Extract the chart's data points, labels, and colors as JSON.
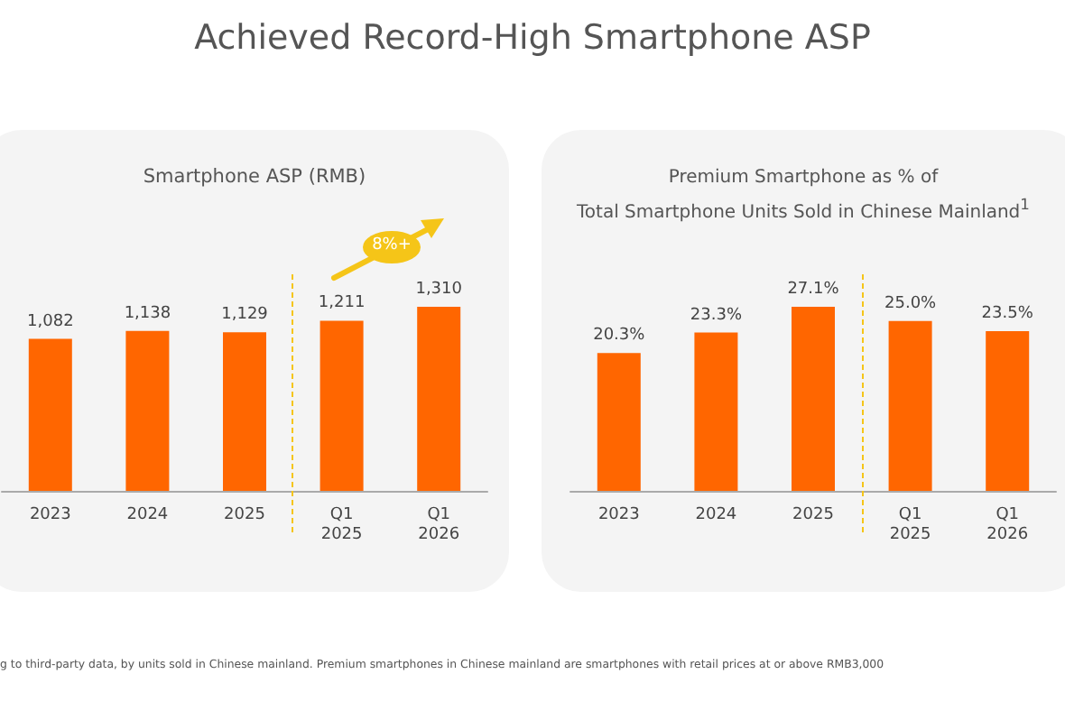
{
  "chart_data": [
    {
      "type": "bar",
      "title": "Achieved Record-High Smartphone ASP",
      "subtitle": "Smartphone ASP (RMB)",
      "categories": [
        "2023",
        "2024",
        "2025",
        "Q1 2025",
        "Q1 2026"
      ],
      "values": [
        1082,
        1138,
        1129,
        1211,
        1310
      ],
      "value_labels": [
        "1,082",
        "1,138",
        "1,129",
        "1,211",
        "1,310"
      ],
      "color": "#ff6600",
      "annotations": [
        "8%+"
      ]
    },
    {
      "type": "bar",
      "title": "Premium Smartphone as % of\nTotal Smartphone Units Sold in Chinese Mainland$^{1}$",
      "categories": [
        "2023",
        "2024",
        "2025",
        "Q1 2025",
        "Q1 2026"
      ],
      "values": [
        20.3,
        23.3,
        27.1,
        25.0,
        23.5
      ],
      "value_labels": [
        "20.3%",
        "23.3%",
        "27.1%",
        "25.0%",
        "23.5%"
      ],
      "color": "#ff6600",
      "annotations": [
        "g to third-party data, by units sold in Chinese mainland. Premium smartphones in Chinese mainland are smartphones with retail prices at or above RMB3,000"
      ]
    }
  ]
}
